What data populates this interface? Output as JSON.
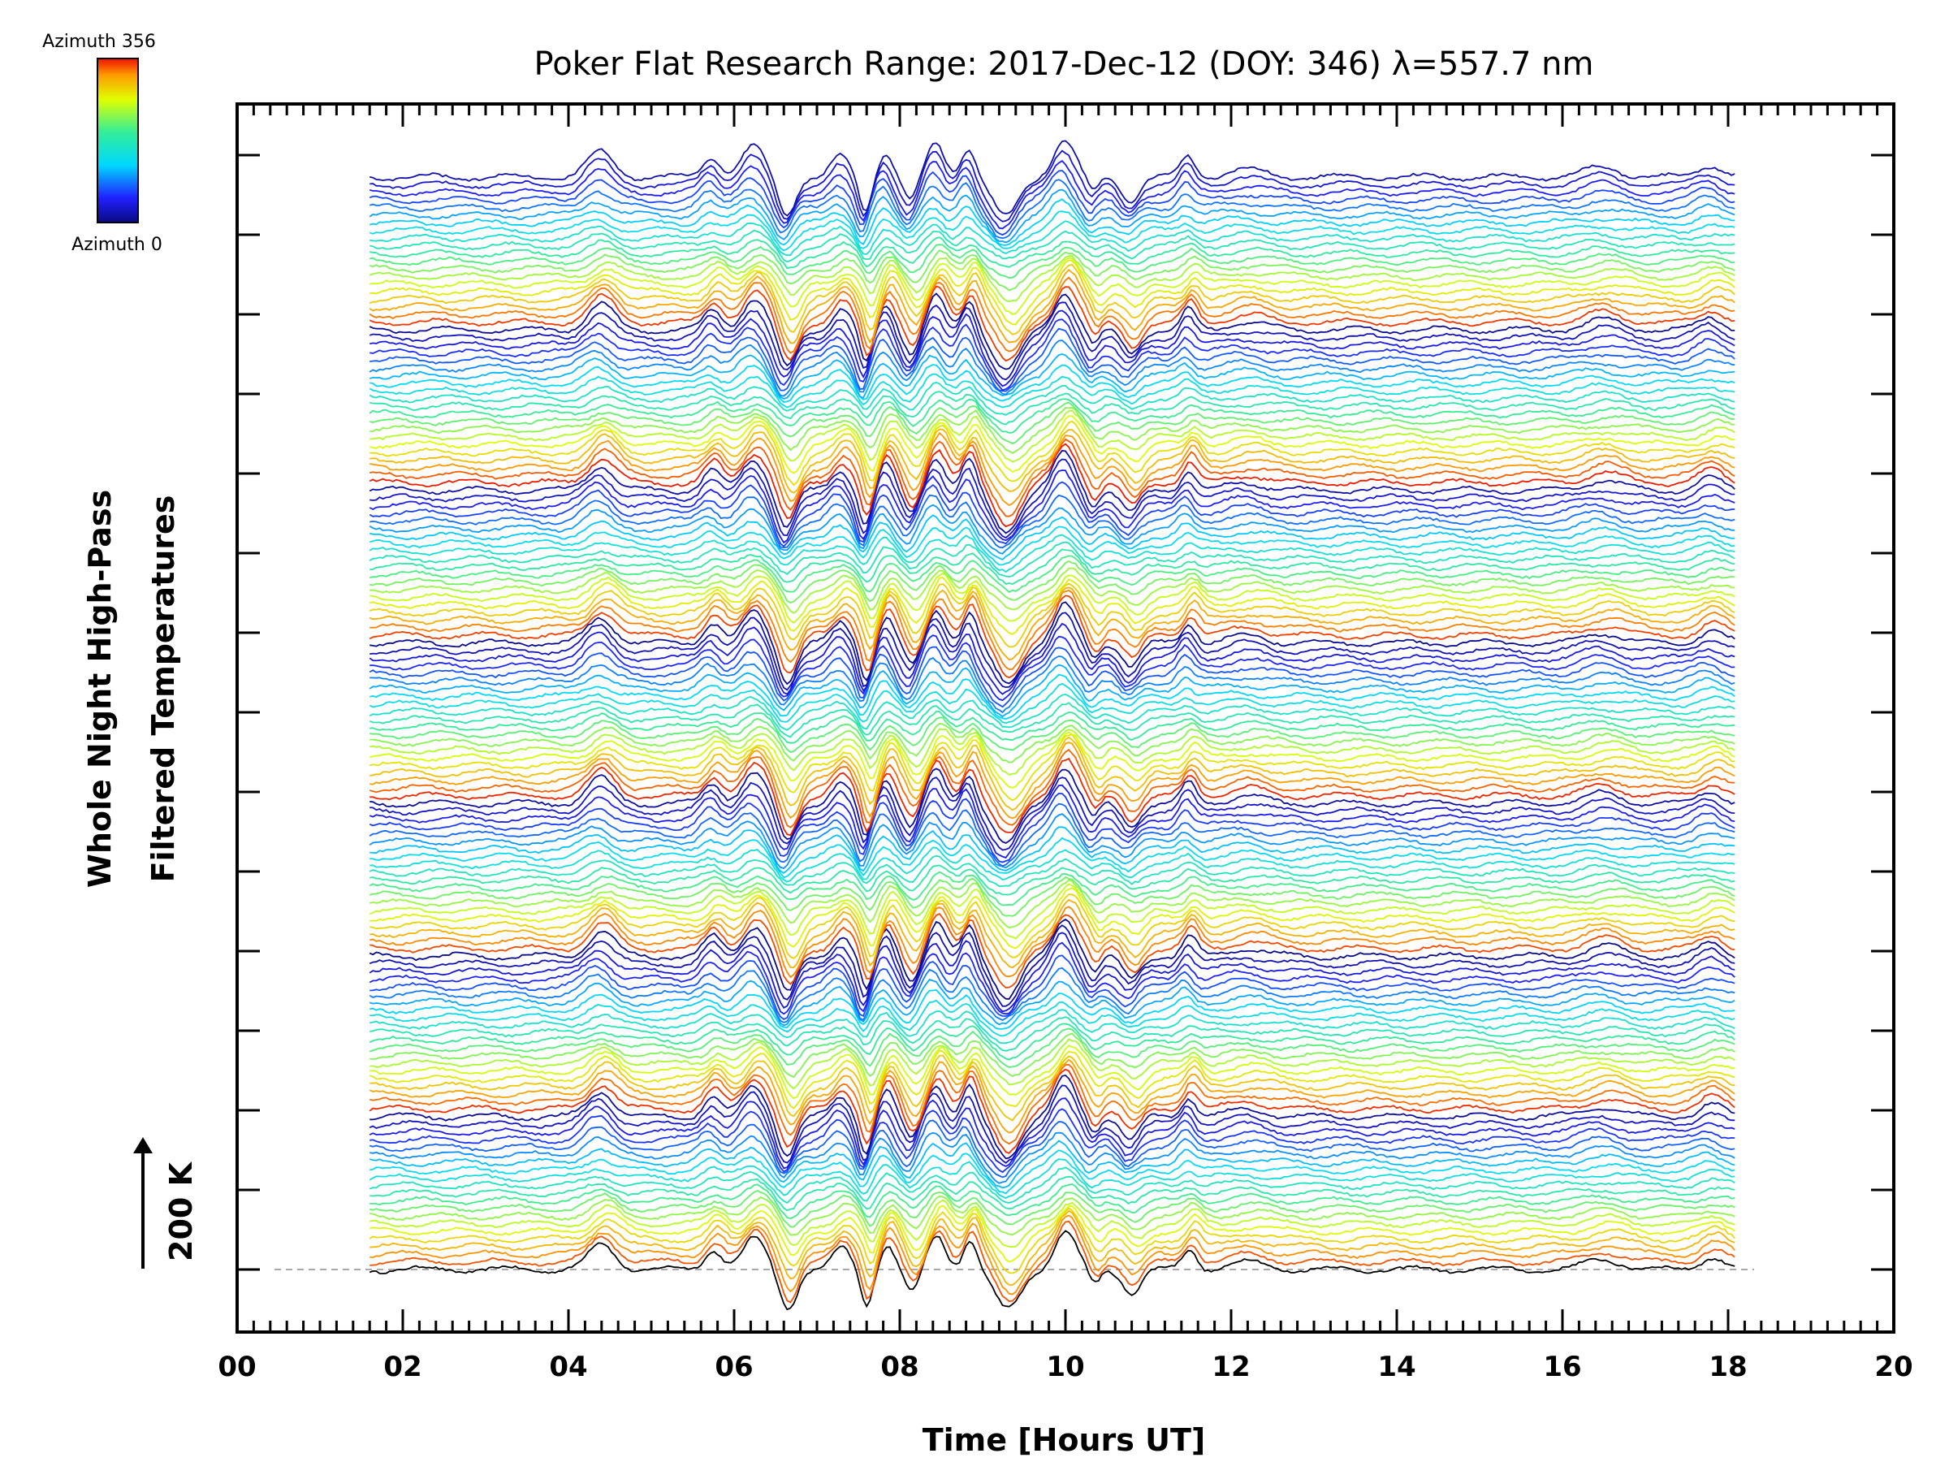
{
  "chart_data": {
    "type": "line",
    "title": "Poker Flat Research Range: 2017-Dec-12 (DOY: 346) λ=557.7 nm",
    "xlabel": "Time [Hours UT]",
    "ylabel_line1": "Whole Night High-Pass",
    "ylabel_line2": "Filtered Temperatures",
    "scale_label": "200 K",
    "xlim": [
      0,
      20
    ],
    "x_ticks": [
      "00",
      "02",
      "04",
      "06",
      "08",
      "10",
      "12",
      "14",
      "16",
      "18",
      "20"
    ],
    "x_range_data": [
      1.6,
      18.1
    ],
    "colorbar": {
      "top_label": "Azimuth 356",
      "bottom_label": "Azimuth 0",
      "min": 0,
      "max": 356
    },
    "series_count": 144,
    "azimuth_cycles": 7,
    "features": [
      {
        "t": 4.4,
        "amp": 1.0,
        "w": 0.22
      },
      {
        "t": 5.75,
        "amp": 0.8,
        "w": 0.15
      },
      {
        "t": 6.25,
        "amp": 1.2,
        "w": 0.2
      },
      {
        "t": 6.65,
        "amp": -1.5,
        "w": 0.15
      },
      {
        "t": 7.3,
        "amp": 0.8,
        "w": 0.15
      },
      {
        "t": 7.6,
        "amp": -1.4,
        "w": 0.1
      },
      {
        "t": 7.85,
        "amp": 1.0,
        "w": 0.12
      },
      {
        "t": 8.15,
        "amp": -0.9,
        "w": 0.12
      },
      {
        "t": 8.45,
        "amp": 1.3,
        "w": 0.15
      },
      {
        "t": 8.85,
        "amp": 1.2,
        "w": 0.12
      },
      {
        "t": 9.3,
        "amp": -1.6,
        "w": 0.22
      },
      {
        "t": 10.0,
        "amp": 1.5,
        "w": 0.18
      },
      {
        "t": 10.35,
        "amp": -0.6,
        "w": 0.1
      },
      {
        "t": 10.8,
        "amp": -0.9,
        "w": 0.15
      },
      {
        "t": 11.5,
        "amp": 0.8,
        "w": 0.12
      },
      {
        "t": 12.2,
        "amp": 0.3,
        "w": 0.3
      },
      {
        "t": 16.5,
        "amp": 0.4,
        "w": 0.3
      },
      {
        "t": 17.8,
        "amp": 0.5,
        "w": 0.2
      }
    ]
  }
}
